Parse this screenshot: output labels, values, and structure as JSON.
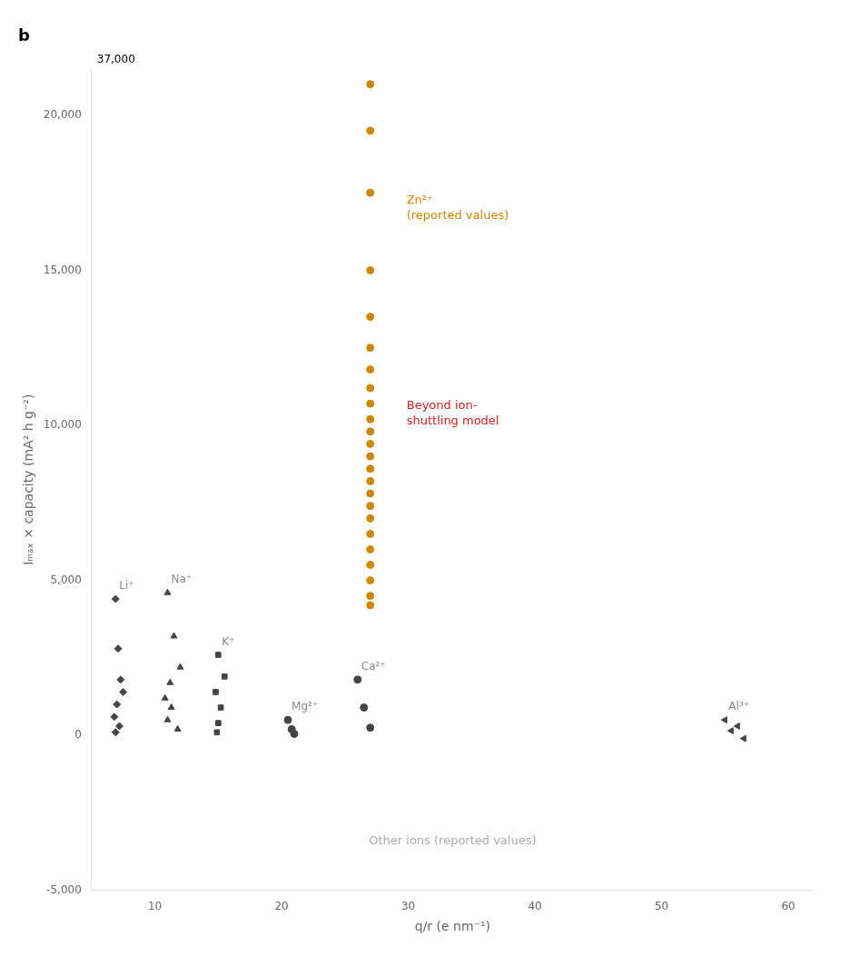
{
  "chart_data": {
    "type": "scatter",
    "title": "b",
    "xlabel": "q/r (e nm⁻¹)",
    "ylabel": "Iₘₐₓ × capacity (mA² h g⁻²)",
    "xlim": [
      5,
      62
    ],
    "xticks": [
      10,
      20,
      30,
      40,
      50,
      60
    ],
    "ylim": [
      -5000,
      21500
    ],
    "yticks": [
      {
        "value": -5000,
        "label": "-5,000"
      },
      0,
      {
        "value": 5000,
        "label": "5,000"
      },
      {
        "value": 10000,
        "label": "10,000"
      },
      {
        "value": 15000,
        "label": "15,000"
      },
      {
        "value": 20000,
        "label": "20,000"
      }
    ],
    "grid": false,
    "series": [
      {
        "name": "Zn²⁺\n(reported values)",
        "marker": "circle",
        "color": "#cc8800",
        "x": [
          27,
          27,
          27,
          27,
          27,
          27,
          27,
          27,
          27,
          27,
          27,
          27,
          27,
          27,
          27,
          27,
          27,
          27,
          27,
          27,
          27,
          27,
          27,
          27
        ],
        "values": [
          4200,
          4500,
          5000,
          5500,
          6000,
          6500,
          7000,
          7400,
          7800,
          8200,
          8600,
          9000,
          9400,
          9800,
          10200,
          10700,
          11200,
          11800,
          12500,
          13500,
          15000,
          17500,
          19500,
          21000
        ]
      },
      {
        "name": "Li⁺",
        "marker": "diamond",
        "color": "#444444",
        "x": [
          6.9,
          7.1,
          7.3,
          7.5,
          7.0,
          6.8,
          7.2,
          6.9
        ],
        "values": [
          4400,
          2800,
          1800,
          1400,
          1000,
          600,
          300,
          100
        ]
      },
      {
        "name": "Na⁺",
        "marker": "triangle",
        "color": "#444444",
        "x": [
          11.0,
          11.5,
          12.0,
          11.2,
          10.8,
          11.3,
          11.0,
          11.8
        ],
        "values": [
          4600,
          3200,
          2200,
          1700,
          1200,
          900,
          500,
          200
        ]
      },
      {
        "name": "K⁺",
        "marker": "square",
        "color": "#444444",
        "x": [
          15.0,
          15.5,
          14.8,
          15.2,
          15.0,
          14.9
        ],
        "values": [
          2600,
          1900,
          1400,
          900,
          400,
          100
        ]
      },
      {
        "name": "Mg²⁺",
        "marker": "circle",
        "color": "#444444",
        "x": [
          20.5,
          20.8,
          21.0
        ],
        "values": [
          500,
          200,
          50
        ]
      },
      {
        "name": "Ca²⁺",
        "marker": "circle",
        "color": "#444444",
        "x": [
          26.0,
          26.5,
          27.0
        ],
        "values": [
          1800,
          900,
          250
        ]
      },
      {
        "name": "Al³⁺",
        "marker": "triangle-left",
        "color": "#444444",
        "x": [
          55.0,
          56.0,
          55.5,
          56.5
        ],
        "values": [
          500,
          300,
          150,
          -100
        ]
      }
    ],
    "annotations": [
      {
        "text": "Beyond ion-\nshuttling model",
        "color": "#cc2222"
      },
      {
        "text": "Other ions (reported values)",
        "color": "#aaaaaa"
      },
      {
        "text": "37,000",
        "color": "#000000"
      }
    ]
  }
}
